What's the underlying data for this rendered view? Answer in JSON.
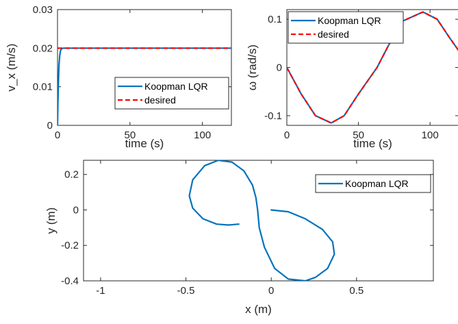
{
  "chart_data": [
    {
      "type": "line",
      "xlabel": "time (s)",
      "ylabel": "v_x (m/s)",
      "xlim": [
        0,
        120
      ],
      "ylim": [
        0,
        0.03
      ],
      "xticks": [
        "0",
        "50",
        "100"
      ],
      "yticks": [
        "0",
        "0.01",
        "0.02",
        "0.03"
      ],
      "grid": false,
      "legend_position": "bottom-right",
      "series": [
        {
          "name": "Koopman LQR",
          "color": "#0072BD",
          "style": "solid",
          "x": [
            0,
            0.3,
            0.6,
            1.0,
            1.5,
            2.0,
            2.5,
            3.0,
            4.0,
            6.0,
            120
          ],
          "y": [
            0,
            0.006,
            0.011,
            0.0155,
            0.018,
            0.0192,
            0.0197,
            0.0199,
            0.02,
            0.02,
            0.02
          ]
        },
        {
          "name": "desired",
          "color": "#FF0000",
          "style": "dashed",
          "x": [
            0,
            120
          ],
          "y": [
            0.02,
            0.02
          ]
        }
      ]
    },
    {
      "type": "line",
      "xlabel": "time (s)",
      "ylabel": "ω (rad/s)",
      "xlim": [
        0,
        120
      ],
      "ylim": [
        -0.12,
        0.12
      ],
      "xticks": [
        "0",
        "50",
        "100"
      ],
      "yticks": [
        "-0.1",
        "0",
        "0.1"
      ],
      "grid": false,
      "legend_position": "top-left",
      "series": [
        {
          "name": "Koopman LQR",
          "color": "#0072BD",
          "style": "solid",
          "x": [
            0,
            10,
            20,
            31,
            40,
            50,
            63,
            70,
            80,
            95,
            105,
            114,
            120
          ],
          "y": [
            0,
            -0.055,
            -0.1,
            -0.115,
            -0.1,
            -0.055,
            0,
            0.04,
            0.095,
            0.115,
            0.1,
            0.06,
            0.035
          ]
        },
        {
          "name": "desired",
          "color": "#FF0000",
          "style": "dashed",
          "x": [
            0,
            10,
            20,
            31,
            40,
            50,
            63,
            70,
            80,
            95,
            105,
            114,
            120
          ],
          "y": [
            0,
            -0.055,
            -0.1,
            -0.115,
            -0.1,
            -0.055,
            0,
            0.04,
            0.095,
            0.115,
            0.1,
            0.06,
            0.035
          ]
        }
      ]
    },
    {
      "type": "line",
      "xlabel": "x (m)",
      "ylabel": "y (m)",
      "xlim": [
        -1.1,
        0.95
      ],
      "ylim": [
        -0.4,
        0.28
      ],
      "xticks": [
        "-1",
        "-0.5",
        "0",
        "0.5"
      ],
      "yticks": [
        "-0.4",
        "-0.2",
        "0",
        "0.2"
      ],
      "grid": false,
      "legend_position": "top-right",
      "series": [
        {
          "name": "Koopman LQR",
          "color": "#0072BD",
          "style": "solid",
          "x": [
            0,
            0.1,
            0.2,
            0.3,
            0.36,
            0.37,
            0.33,
            0.26,
            0.2,
            0.1,
            0.02,
            -0.04,
            -0.07,
            -0.08,
            -0.09,
            -0.11,
            -0.16,
            -0.23,
            -0.31,
            -0.39,
            -0.46,
            -0.48,
            -0.46,
            -0.4,
            -0.32,
            -0.25,
            -0.19
          ],
          "y": [
            0,
            -0.01,
            -0.05,
            -0.11,
            -0.18,
            -0.25,
            -0.33,
            -0.38,
            -0.4,
            -0.39,
            -0.33,
            -0.21,
            -0.1,
            0,
            0.07,
            0.14,
            0.22,
            0.27,
            0.28,
            0.25,
            0.17,
            0.08,
            0.01,
            -0.05,
            -0.08,
            -0.085,
            -0.08
          ]
        }
      ]
    }
  ]
}
